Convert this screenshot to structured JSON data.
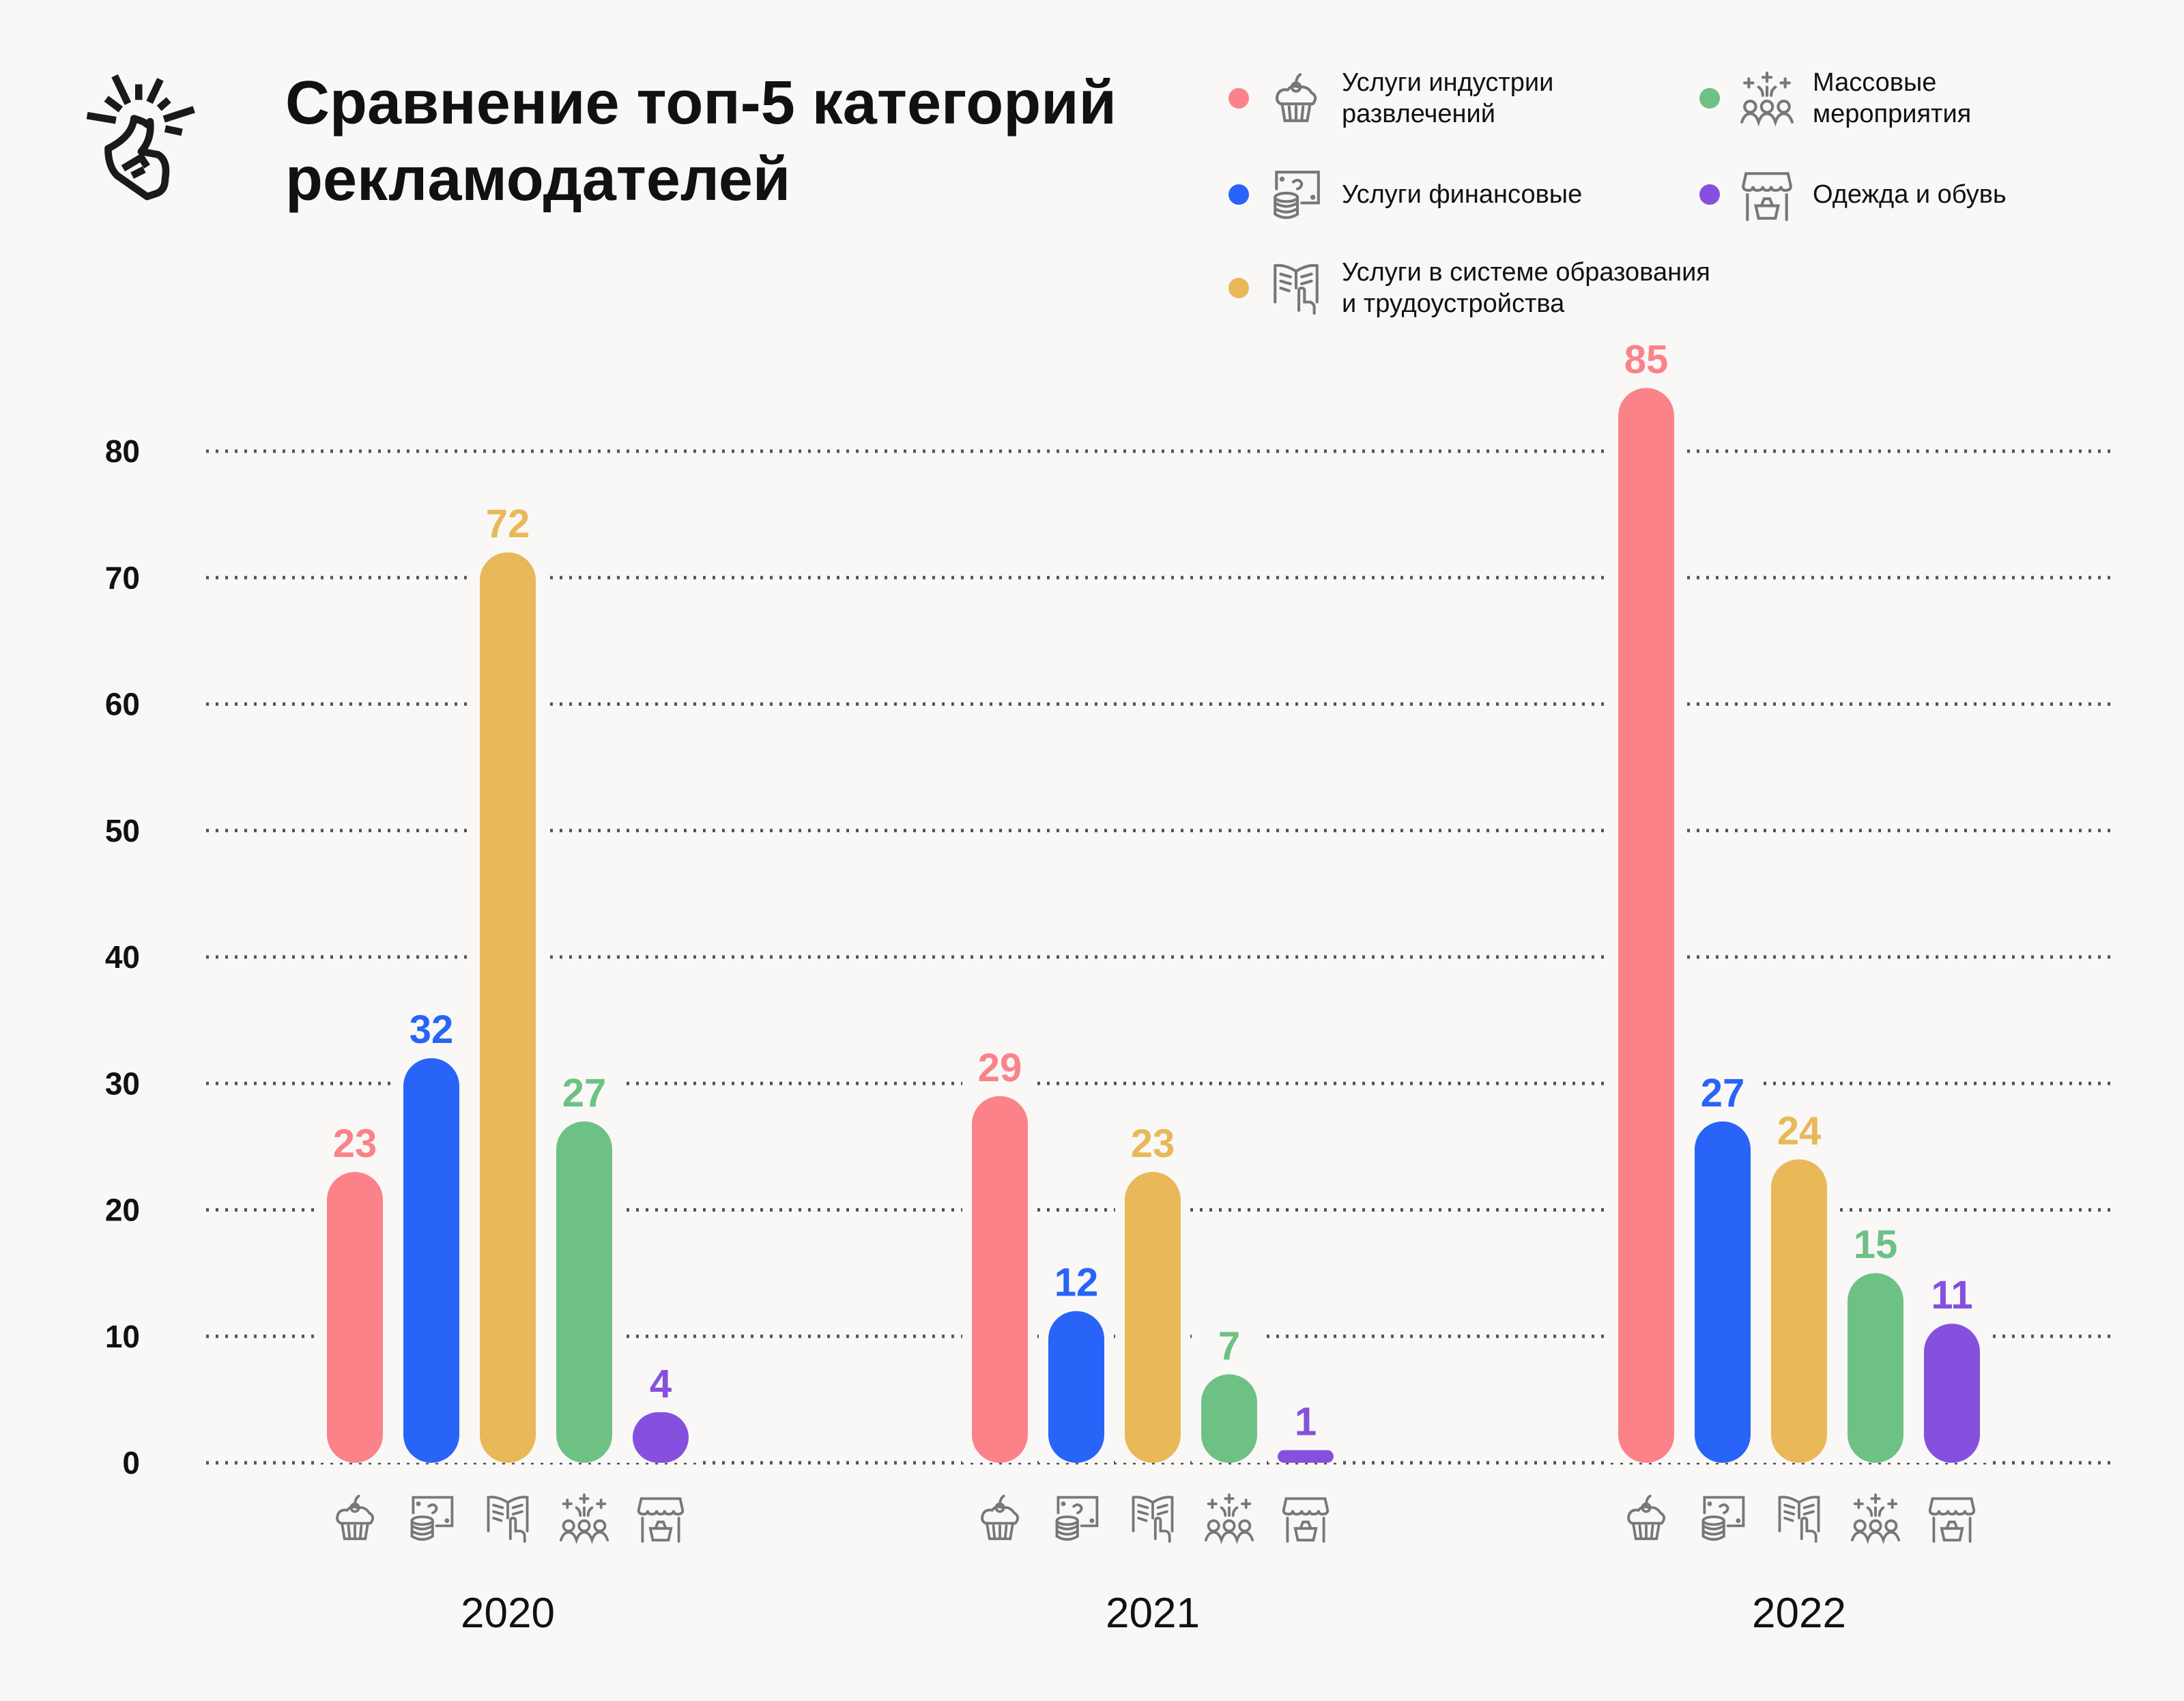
{
  "chart_data": {
    "type": "bar",
    "title": "Сравнение топ-5 категорий рекламодателей",
    "title_lines": [
      "Сравнение топ-5 категорий",
      "рекламодателей"
    ],
    "categories": [
      "2020",
      "2021",
      "2022"
    ],
    "series": [
      {
        "name": "Услуги индустрии развлечений",
        "name_lines": [
          "Услуги индустрии",
          "развлечений"
        ],
        "color": "#fb8289",
        "icon": "cupcake-icon",
        "values": [
          23,
          29,
          85
        ]
      },
      {
        "name": "Услуги финансовые",
        "name_lines": [
          "Услуги финансовые"
        ],
        "color": "#2864f8",
        "icon": "money-icon",
        "values": [
          32,
          12,
          27
        ]
      },
      {
        "name": "Услуги в системе образования и трудоустройства",
        "name_lines": [
          "Услуги в системе образования",
          "и трудоустройства"
        ],
        "color": "#e9b858",
        "icon": "book-icon",
        "values": [
          72,
          23,
          24
        ]
      },
      {
        "name": "Массовые мероприятия",
        "name_lines": [
          "Массовые",
          "мероприятия"
        ],
        "color": "#6ec185",
        "icon": "crowd-icon",
        "values": [
          27,
          7,
          15
        ]
      },
      {
        "name": "Одежда и обувь",
        "name_lines": [
          "Одежда и обувь"
        ],
        "color": "#8650df",
        "icon": "shop-icon",
        "values": [
          4,
          1,
          11
        ]
      }
    ],
    "yticks": [
      "0",
      "10",
      "20",
      "30",
      "40",
      "50",
      "60",
      "70",
      "80"
    ],
    "ylim": [
      0,
      85
    ],
    "xlabel": "",
    "ylabel": "",
    "grid": true,
    "legend_placement": "top-right"
  },
  "colors": {
    "background": "#f9f8f6",
    "text": "#111111",
    "grid": "#555555",
    "icon": "#777777"
  }
}
